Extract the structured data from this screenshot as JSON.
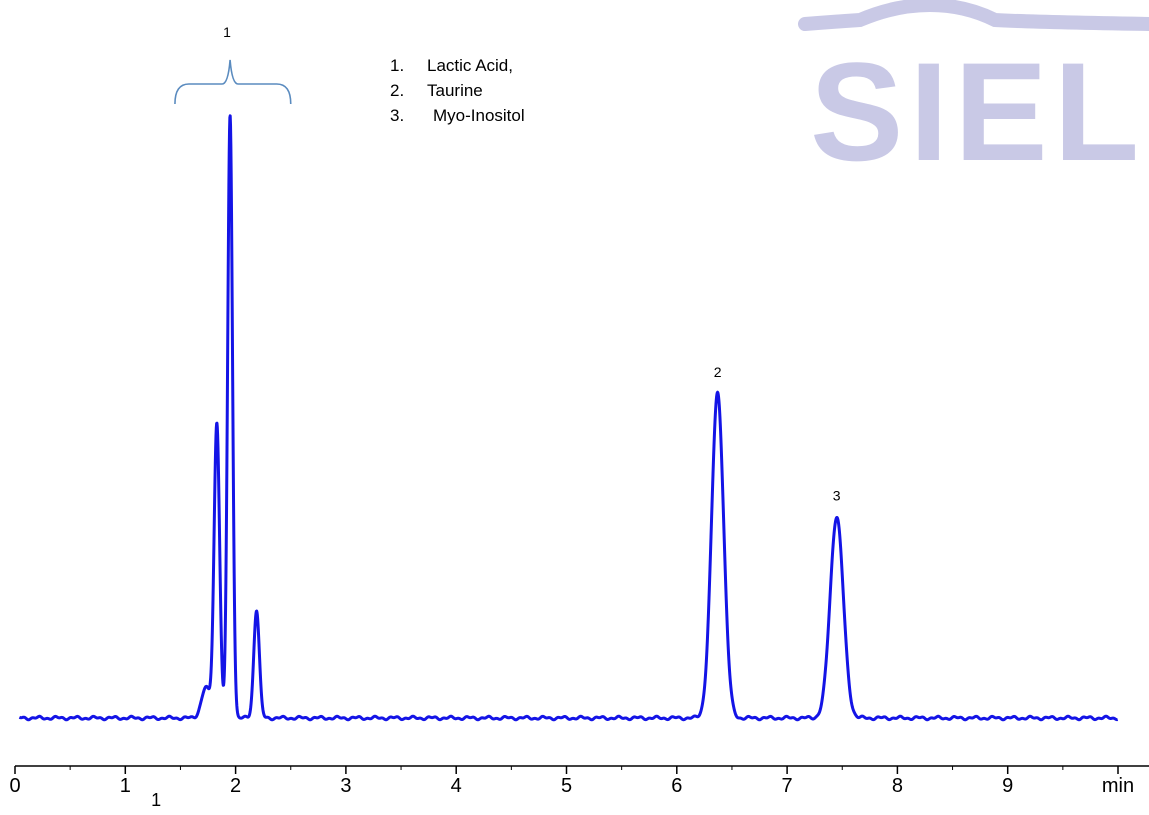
{
  "watermark": {
    "text": "SIELC",
    "color": "#c9c9e6"
  },
  "chart_data": {
    "type": "line",
    "title": "",
    "xlabel": "",
    "ylabel": "",
    "x_unit": "min",
    "xlim": [
      0,
      10
    ],
    "ylim": [
      0,
      1
    ],
    "grid": false,
    "legend": {
      "placement": "top-center",
      "entries": [
        {
          "number": "1.",
          "name": "Lactic Acid,"
        },
        {
          "number": "2.",
          "name": "Taurine"
        },
        {
          "number": "3.",
          "name": "Myo-Inositol"
        }
      ]
    },
    "x_ticks": [
      "0",
      "1",
      "2",
      "3",
      "4",
      "5",
      "6",
      "7",
      "8",
      "9"
    ],
    "stray_label": "1",
    "line_color": "#1414e6",
    "bracket_color": "#5a8bbf",
    "peaks": [
      {
        "label": "1",
        "center": 1.83,
        "height": 0.49,
        "width": 0.025,
        "show_label": false
      },
      {
        "label": "1",
        "center": 1.95,
        "height": 1.0,
        "width": 0.022,
        "show_label": false
      },
      {
        "label": "1",
        "center": 1.73,
        "height": 0.05,
        "width": 0.04,
        "show_label": false
      },
      {
        "label": "1",
        "center": 2.19,
        "height": 0.18,
        "width": 0.025,
        "show_label": false
      },
      {
        "label": "2",
        "center": 6.37,
        "height": 0.54,
        "width": 0.055,
        "show_label": true
      },
      {
        "label": "3",
        "center": 7.45,
        "height": 0.335,
        "width": 0.06,
        "show_label": true
      }
    ],
    "group_bracket": {
      "label": "1",
      "x_start": 1.45,
      "x_end": 2.5,
      "peak_x": 1.95
    }
  }
}
